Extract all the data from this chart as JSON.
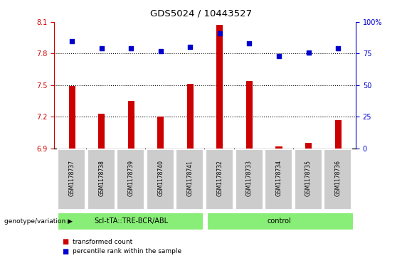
{
  "title": "GDS5024 / 10443527",
  "samples": [
    "GSM1178737",
    "GSM1178738",
    "GSM1178739",
    "GSM1178740",
    "GSM1178741",
    "GSM1178732",
    "GSM1178733",
    "GSM1178734",
    "GSM1178735",
    "GSM1178736"
  ],
  "transformed_count": [
    7.49,
    7.23,
    7.35,
    7.2,
    7.51,
    8.07,
    7.54,
    6.92,
    6.95,
    7.17
  ],
  "percentile_rank": [
    85,
    79,
    79,
    77,
    80,
    91,
    83,
    73,
    76,
    79
  ],
  "bar_color": "#cc0000",
  "dot_color": "#0000cc",
  "ylim_left": [
    6.9,
    8.1
  ],
  "ylim_right": [
    0,
    100
  ],
  "yticks_left": [
    6.9,
    7.2,
    7.5,
    7.8,
    8.1
  ],
  "yticks_right": [
    0,
    25,
    50,
    75,
    100
  ],
  "hlines": [
    7.2,
    7.5,
    7.8
  ],
  "group1_label": "Scl-tTA::TRE-BCR/ABL",
  "group2_label": "control",
  "group1_indices": [
    0,
    1,
    2,
    3,
    4
  ],
  "group2_indices": [
    5,
    6,
    7,
    8,
    9
  ],
  "group_color": "#88ee77",
  "sample_box_color": "#cccccc",
  "legend_bar_label": "transformed count",
  "legend_dot_label": "percentile rank within the sample",
  "genotype_label": "genotype/variation"
}
